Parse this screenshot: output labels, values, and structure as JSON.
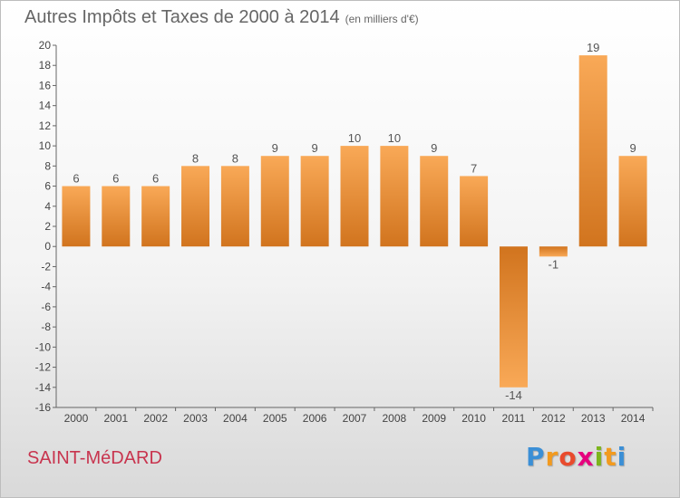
{
  "title": "Autres Impôts et Taxes de 2000 à 2014",
  "unit_note": "(en milliers d'€)",
  "commune": "SAINT-MéDARD",
  "brand": {
    "text": "Proxiti",
    "letters": [
      "P",
      "r",
      "o",
      "x",
      "i",
      "t",
      "i"
    ],
    "colors": [
      "#3b8fd6",
      "#f29a1f",
      "#e94b2d",
      "#e6007e",
      "#7cb51c",
      "#f29a1f",
      "#3b8fd6"
    ]
  },
  "colors": {
    "bar_light": "#f9a957",
    "bar_dark": "#d1741e",
    "axis": "#666666",
    "grid": "#cccccc"
  },
  "chart_data": {
    "type": "bar",
    "categories": [
      "2000",
      "2001",
      "2002",
      "2003",
      "2004",
      "2005",
      "2006",
      "2007",
      "2008",
      "2009",
      "2010",
      "2011",
      "2012",
      "2013",
      "2014"
    ],
    "values": [
      6,
      6,
      6,
      8,
      8,
      9,
      9,
      10,
      10,
      9,
      7,
      -14,
      -1,
      19,
      9
    ],
    "data_labels": [
      "6",
      "6",
      "6",
      "8",
      "8",
      "9",
      "9",
      "10",
      "10",
      "9",
      "7",
      "-14",
      "-1",
      "19",
      "9"
    ],
    "title": "Autres Impôts et Taxes de 2000 à 2014",
    "xlabel": "",
    "ylabel": "",
    "ylim": [
      -16,
      20
    ],
    "yticks": [
      20,
      18,
      16,
      14,
      12,
      10,
      8,
      6,
      4,
      2,
      0,
      -2,
      -4,
      -6,
      -8,
      -10,
      -12,
      -14,
      -16
    ],
    "grid": false,
    "legend": "none"
  }
}
